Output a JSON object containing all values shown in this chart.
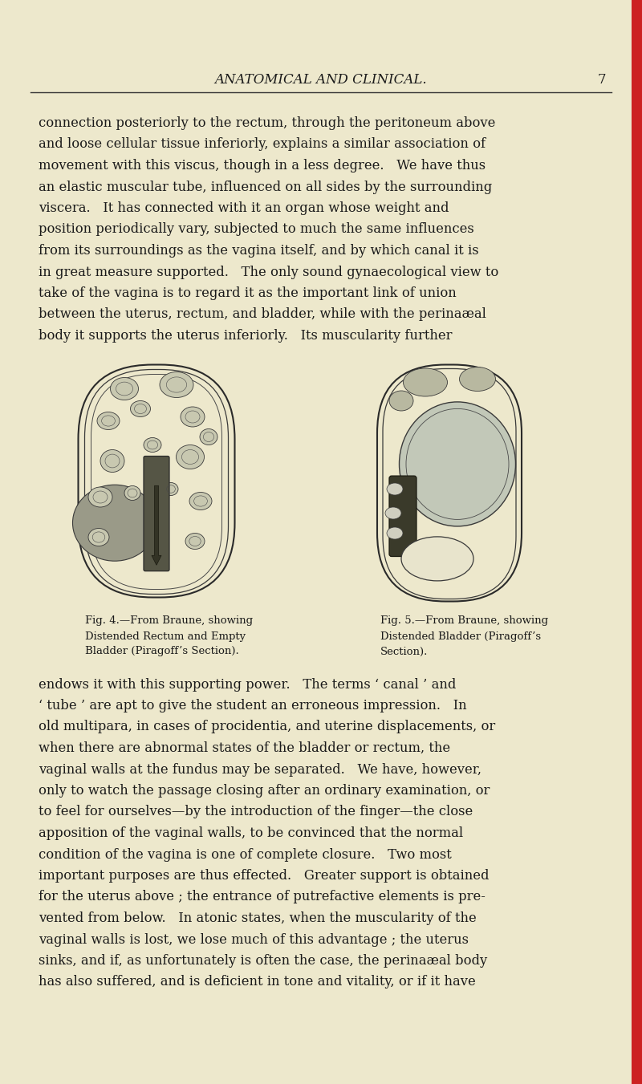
{
  "page_bg_color": "#EDE8CC",
  "header_text": "ANATOMICAL AND CLINICAL.",
  "page_number": "7",
  "body_text_color": "#1a1a1a",
  "fig_caption_left": [
    "Fig. 4.—From Braune, showing",
    "Distended Rectum and Empty",
    "Bladder (Piragoff’s Section)."
  ],
  "fig_caption_right": [
    "Fig. 5.—From Braune, showing",
    "Distended Bladder (Piragoff’s",
    "Section)."
  ],
  "top_paragraph_lines": [
    "connection posteriorly to the rectum, through the peritoneum above",
    "and loose cellular tissue inferiorly, explains a similar association of",
    "movement with this viscus, though in a less degree.   We have thus",
    "an elastic muscular tube, influenced on all sides by the surrounding",
    "viscera.   It has connected with it an organ whose weight and",
    "position periodically vary, subjected to much the same influences",
    "from its surroundings as the vagina itself, and by which canal it is",
    "in great measure supported.   The only sound gynaecological view to",
    "take of the vagina is to regard it as the important link of union",
    "between the uterus, rectum, and bladder, while with the perinaæal",
    "body it supports the uterus inferiorly.   Its muscularity further"
  ],
  "bottom_paragraph_lines": [
    "endows it with this supporting power.   The terms ‘ canal ’ and",
    "‘ tube ’ are apt to give the student an erroneous impression.   In",
    "old multipara, in cases of procidentia, and uterine displacements, or",
    "when there are abnormal states of the bladder or rectum, the",
    "vaginal walls at the fundus may be separated.   We have, however,",
    "only to watch the passage closing after an ordinary examination, or",
    "to feel for ourselves—by the introduction of the finger—the close",
    "apposition of the vaginal walls, to be convinced that the normal",
    "condition of the vagina is one of complete closure.   Two most",
    "important purposes are thus effected.   Greater support is obtained",
    "for the uterus above ; the entrance of putrefactive elements is pre-",
    "vented from below.   In atonic states, when the muscularity of the",
    "vaginal walls is lost, we lose much of this advantage ; the uterus",
    "sinks, and if, as unfortunately is often the case, the perinaæal body",
    "has also suffered, and is deficient in tone and vitality, or if it have"
  ]
}
